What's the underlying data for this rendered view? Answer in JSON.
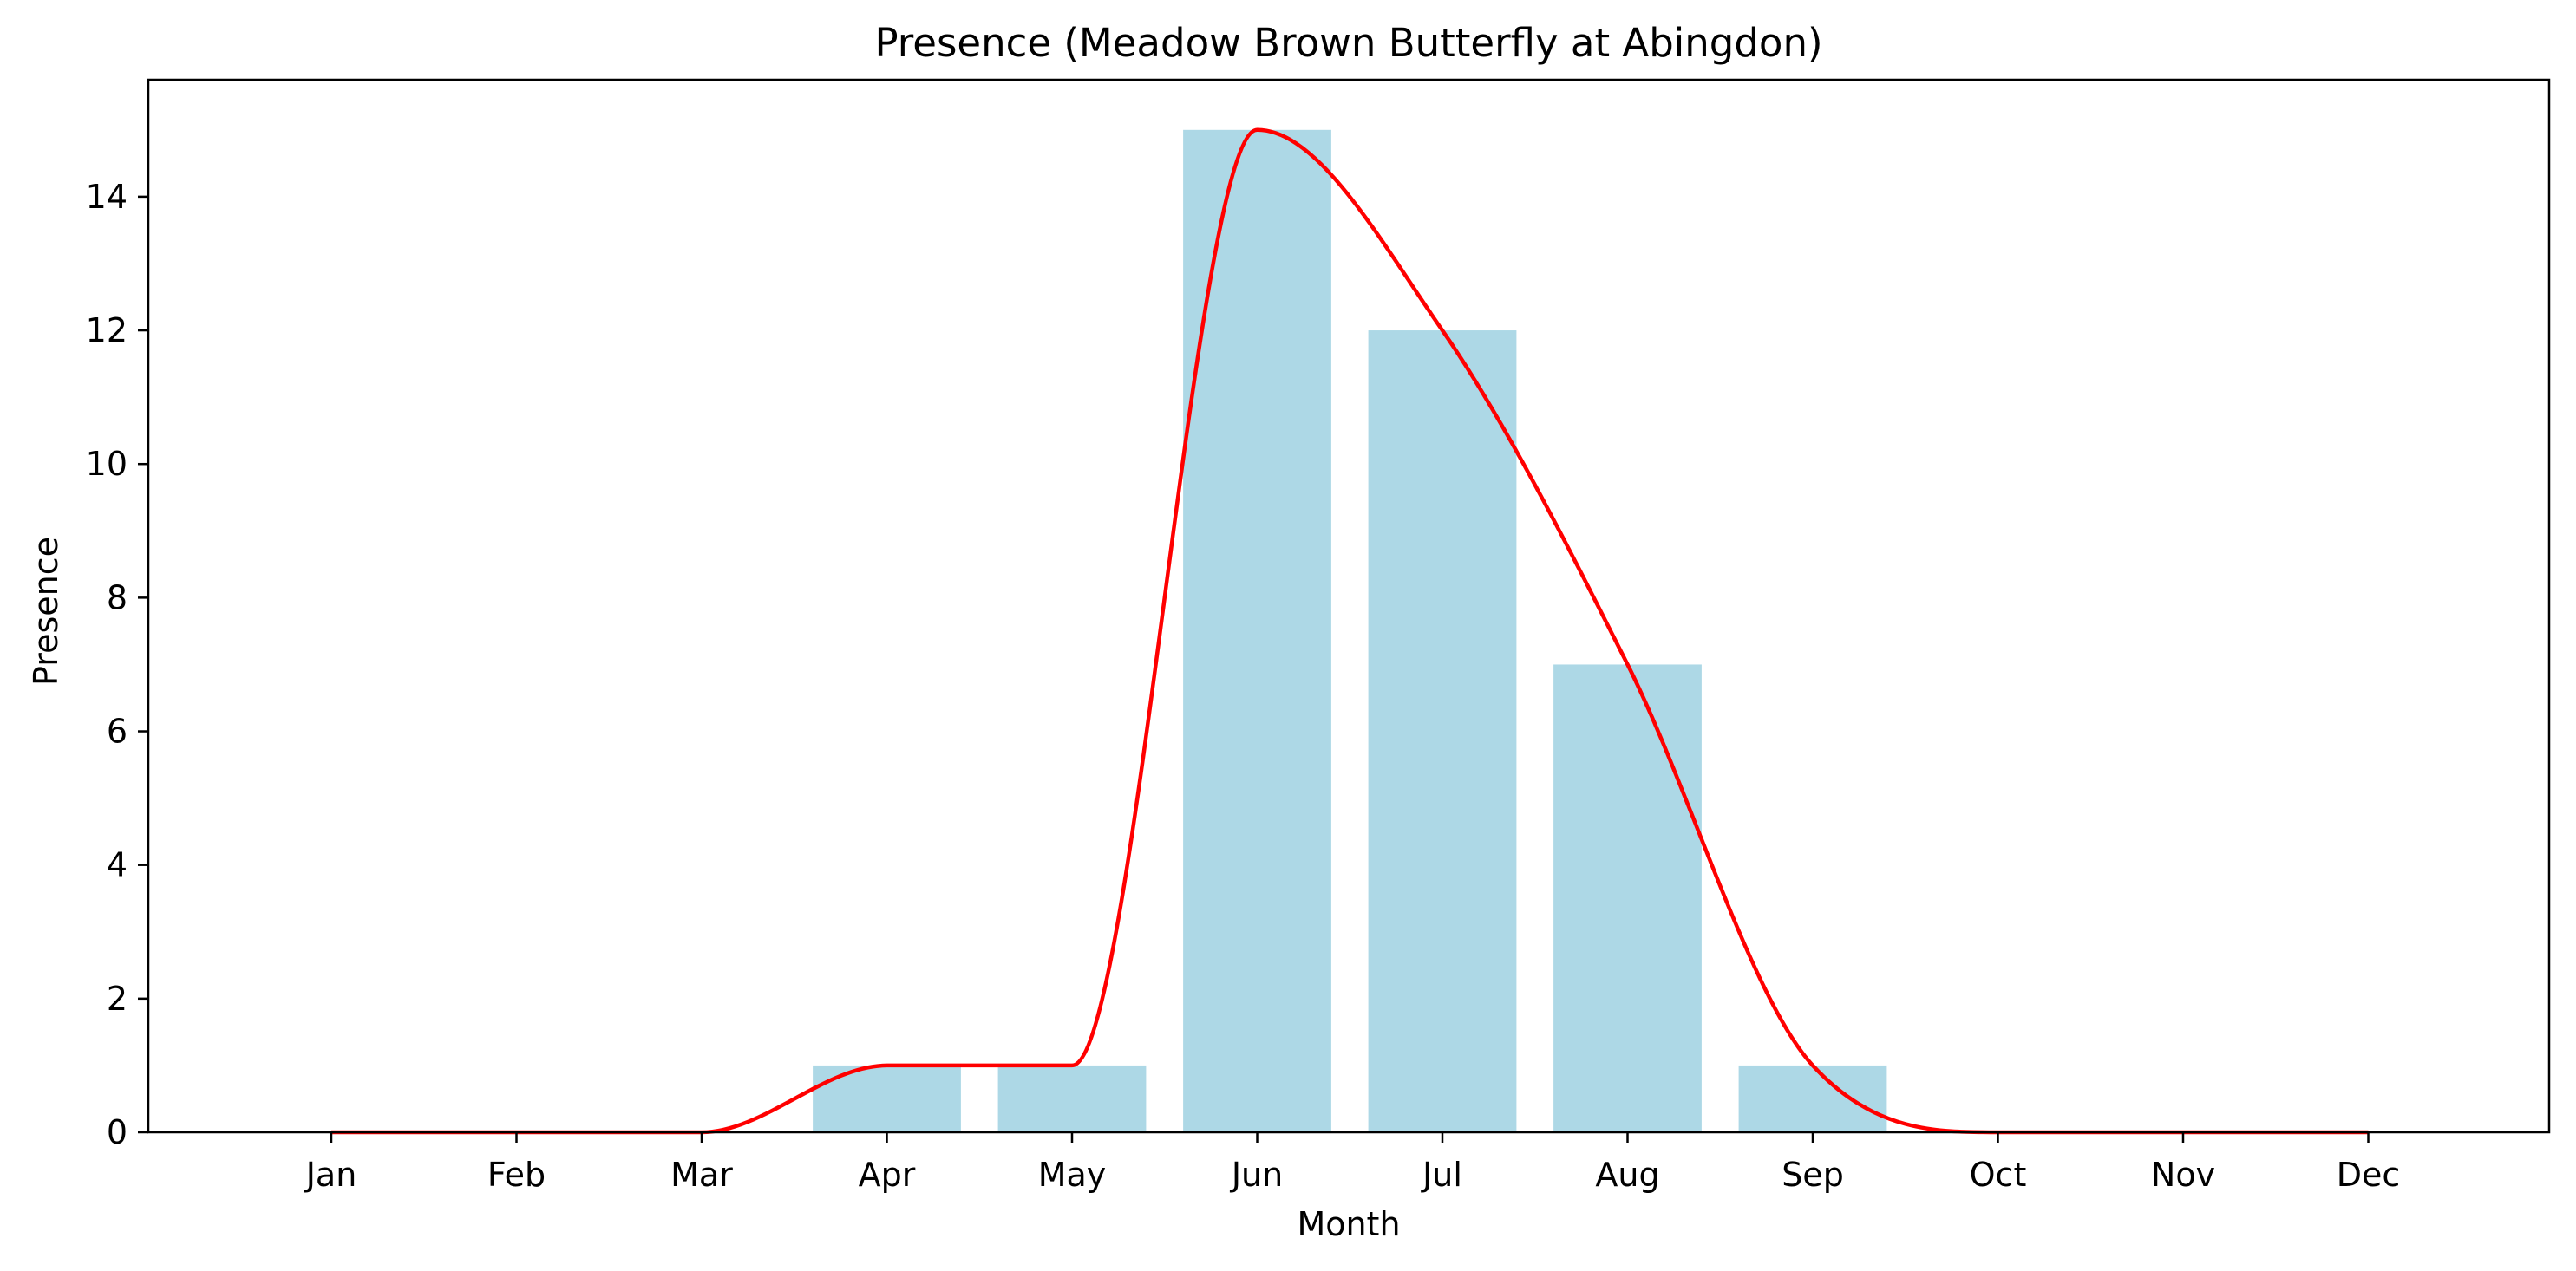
{
  "chart_data": {
    "type": "bar",
    "title": "Presence (Meadow Brown Butterfly at Abingdon)",
    "xlabel": "Month",
    "ylabel": "Presence",
    "categories": [
      "Jan",
      "Feb",
      "Mar",
      "Apr",
      "May",
      "Jun",
      "Jul",
      "Aug",
      "Sep",
      "Oct",
      "Nov",
      "Dec"
    ],
    "values": [
      0,
      0,
      0,
      1,
      1,
      15,
      12,
      7,
      1,
      0,
      0,
      0
    ],
    "overlay": {
      "type": "line",
      "smooth": true,
      "values": [
        0,
        0,
        0,
        1,
        1,
        15,
        12,
        7,
        1,
        0,
        0,
        0
      ]
    },
    "ylim": [
      0,
      15.75
    ],
    "yticks": [
      0,
      2,
      4,
      6,
      8,
      10,
      12,
      14
    ],
    "grid": false,
    "legend": "none",
    "colors": {
      "bar": "#add8e6",
      "line": "#ff0000",
      "axes": "#000000"
    }
  }
}
